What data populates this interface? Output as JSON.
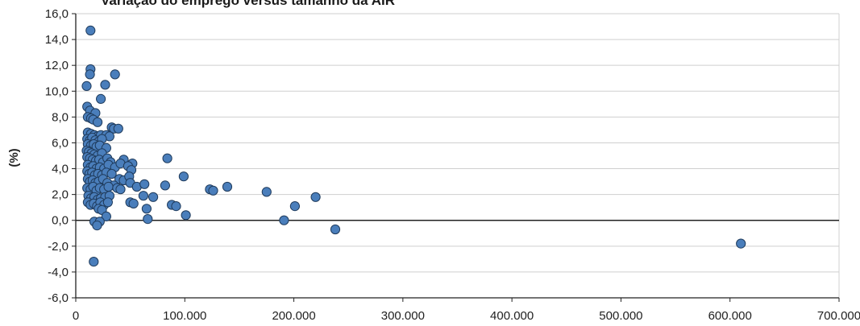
{
  "chart_data": {
    "type": "scatter",
    "title": "Variação do emprego versus tamanho da AIR",
    "xlabel": "",
    "ylabel": "(%)",
    "xlim": [
      0,
      700000
    ],
    "ylim": [
      -6,
      16
    ],
    "x_ticks": [
      "0",
      "100.000",
      "200.000",
      "300.000",
      "400.000",
      "500.000",
      "600.000",
      "700.000"
    ],
    "y_ticks": [
      "16,0",
      "14,0",
      "12,0",
      "10,0",
      "8,0",
      "6,0",
      "4,0",
      "2,0",
      "0,0",
      "-2,0",
      "-4,0",
      "-6,0"
    ],
    "x_tick_values": [
      0,
      100000,
      200000,
      300000,
      400000,
      500000,
      600000,
      700000
    ],
    "y_tick_values": [
      16,
      14,
      12,
      10,
      8,
      6,
      4,
      2,
      0,
      -2,
      -4,
      -6
    ],
    "grid": "horizontal",
    "marker_color": "#4a7ebb",
    "marker_edge_color": "#1f3b5c",
    "points": [
      [
        13500,
        14.7
      ],
      [
        13500,
        11.7
      ],
      [
        13000,
        11.3
      ],
      [
        27000,
        10.5
      ],
      [
        36000,
        11.3
      ],
      [
        10000,
        10.4
      ],
      [
        23000,
        9.4
      ],
      [
        10500,
        8.8
      ],
      [
        13000,
        8.5
      ],
      [
        18000,
        8.3
      ],
      [
        11000,
        8.0
      ],
      [
        14000,
        7.9
      ],
      [
        16000,
        7.8
      ],
      [
        20000,
        7.6
      ],
      [
        33000,
        7.2
      ],
      [
        35000,
        7.1
      ],
      [
        39000,
        7.1
      ],
      [
        11000,
        6.8
      ],
      [
        14000,
        6.7
      ],
      [
        17000,
        6.6
      ],
      [
        20000,
        6.5
      ],
      [
        23000,
        6.6
      ],
      [
        28000,
        6.6
      ],
      [
        31000,
        6.5
      ],
      [
        10500,
        6.3
      ],
      [
        13000,
        6.2
      ],
      [
        15000,
        6.4
      ],
      [
        18000,
        6.2
      ],
      [
        21000,
        6.1
      ],
      [
        24000,
        6.3
      ],
      [
        11000,
        5.9
      ],
      [
        14000,
        5.8
      ],
      [
        16500,
        5.9
      ],
      [
        19000,
        5.7
      ],
      [
        22000,
        5.8
      ],
      [
        28000,
        5.6
      ],
      [
        10000,
        5.4
      ],
      [
        12000,
        5.3
      ],
      [
        14500,
        5.2
      ],
      [
        17000,
        5.1
      ],
      [
        20000,
        5.0
      ],
      [
        24000,
        5.2
      ],
      [
        10500,
        4.9
      ],
      [
        13000,
        4.8
      ],
      [
        15500,
        4.7
      ],
      [
        18500,
        4.6
      ],
      [
        21500,
        4.7
      ],
      [
        25000,
        4.5
      ],
      [
        29000,
        4.8
      ],
      [
        32000,
        4.5
      ],
      [
        44000,
        4.7
      ],
      [
        52000,
        4.4
      ],
      [
        84000,
        4.8
      ],
      [
        11000,
        4.3
      ],
      [
        13500,
        4.1
      ],
      [
        16000,
        4.2
      ],
      [
        19000,
        4.0
      ],
      [
        22000,
        4.1
      ],
      [
        26000,
        4.0
      ],
      [
        30000,
        4.3
      ],
      [
        36000,
        4.1
      ],
      [
        41000,
        4.4
      ],
      [
        48000,
        4.2
      ],
      [
        51000,
        3.9
      ],
      [
        10500,
        3.8
      ],
      [
        12500,
        3.6
      ],
      [
        15000,
        3.7
      ],
      [
        17500,
        3.5
      ],
      [
        20500,
        3.6
      ],
      [
        24000,
        3.5
      ],
      [
        28000,
        3.7
      ],
      [
        33000,
        3.6
      ],
      [
        40000,
        3.2
      ],
      [
        44000,
        3.1
      ],
      [
        49000,
        3.4
      ],
      [
        99000,
        3.4
      ],
      [
        11000,
        3.2
      ],
      [
        13000,
        3.0
      ],
      [
        15500,
        3.1
      ],
      [
        18000,
        2.9
      ],
      [
        21000,
        3.0
      ],
      [
        25000,
        3.2
      ],
      [
        29000,
        2.9
      ],
      [
        35000,
        2.7
      ],
      [
        50000,
        2.9
      ],
      [
        56000,
        2.6
      ],
      [
        63000,
        2.8
      ],
      [
        82000,
        2.7
      ],
      [
        10500,
        2.5
      ],
      [
        13500,
        2.4
      ],
      [
        16000,
        2.6
      ],
      [
        19000,
        2.3
      ],
      [
        22000,
        2.5
      ],
      [
        26000,
        2.4
      ],
      [
        30000,
        2.6
      ],
      [
        38000,
        2.5
      ],
      [
        41000,
        2.4
      ],
      [
        123000,
        2.4
      ],
      [
        126000,
        2.3
      ],
      [
        139000,
        2.6
      ],
      [
        175000,
        2.2
      ],
      [
        62000,
        1.9
      ],
      [
        71000,
        1.8
      ],
      [
        11500,
        1.9
      ],
      [
        14000,
        1.7
      ],
      [
        17000,
        1.8
      ],
      [
        20000,
        1.6
      ],
      [
        23000,
        1.7
      ],
      [
        27000,
        1.8
      ],
      [
        31000,
        1.9
      ],
      [
        11000,
        1.4
      ],
      [
        13500,
        1.2
      ],
      [
        16500,
        1.3
      ],
      [
        19500,
        1.1
      ],
      [
        22500,
        1.4
      ],
      [
        26000,
        1.2
      ],
      [
        29500,
        1.4
      ],
      [
        50000,
        1.4
      ],
      [
        53000,
        1.3
      ],
      [
        88000,
        1.2
      ],
      [
        92000,
        1.1
      ],
      [
        65000,
        0.9
      ],
      [
        21000,
        0.9
      ],
      [
        24000,
        0.8
      ],
      [
        28000,
        0.3
      ],
      [
        101000,
        0.4
      ],
      [
        66000,
        0.1
      ],
      [
        201000,
        1.1
      ],
      [
        220000,
        1.8
      ],
      [
        191000,
        0.0
      ],
      [
        17000,
        -0.1
      ],
      [
        22000,
        -0.1
      ],
      [
        19500,
        -0.4
      ],
      [
        238000,
        -0.7
      ],
      [
        16500,
        -3.2
      ],
      [
        610000,
        -1.8
      ]
    ]
  }
}
